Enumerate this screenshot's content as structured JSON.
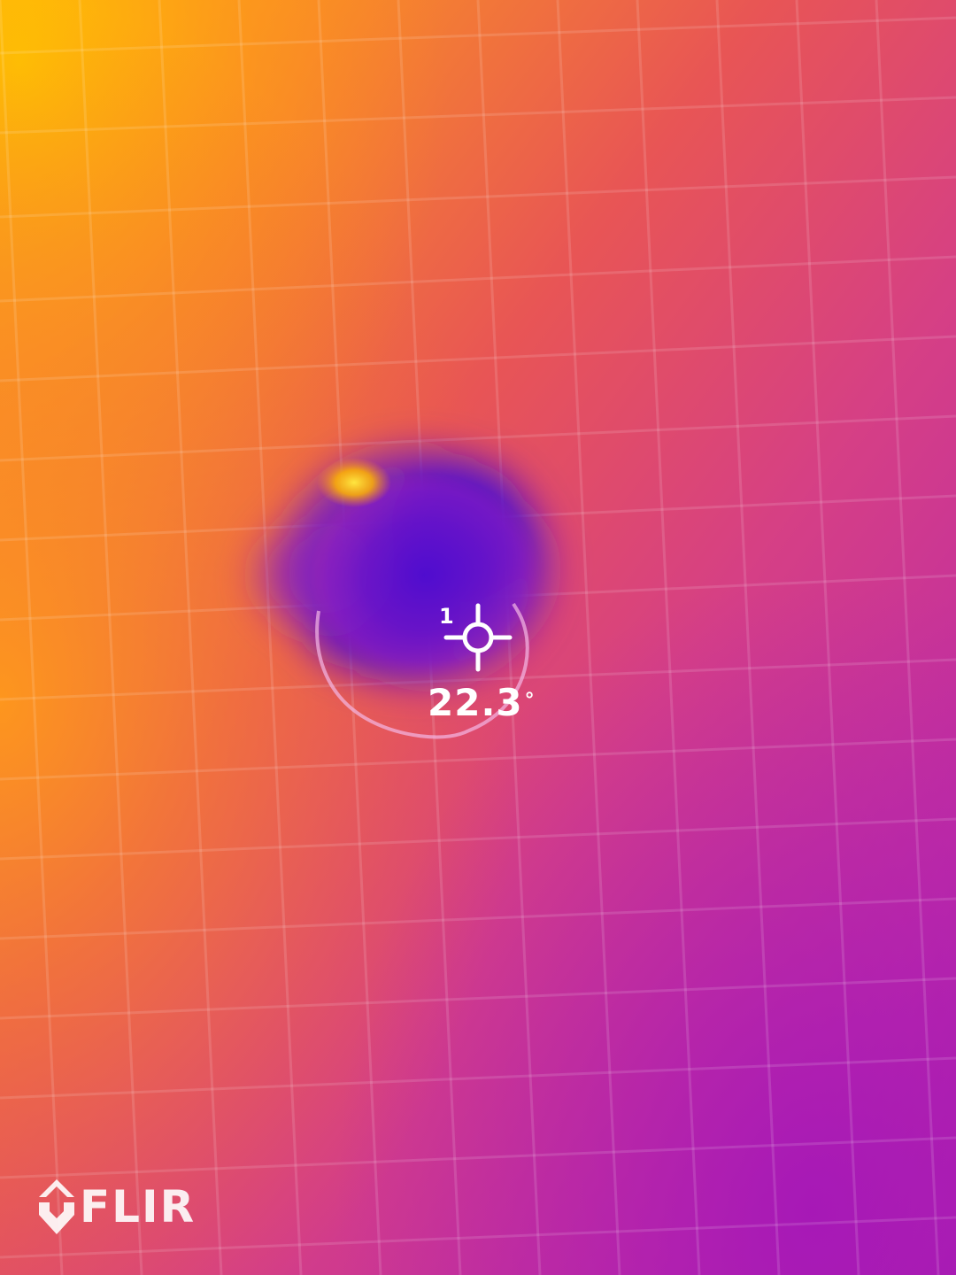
{
  "measurement": {
    "spot_index": "1",
    "temperature_value": "22.3",
    "temperature_unit": "°"
  },
  "brand": {
    "logo_text": "FLIR"
  },
  "colors": {
    "overlay_text": "#ffffff",
    "palette_hot": "#ffb300",
    "palette_warm": "#f06a30",
    "palette_mid": "#d8407a",
    "palette_cool": "#b022b0",
    "palette_cold": "#5a10c8"
  },
  "icons": {
    "spot_marker": "crosshair-icon",
    "brand_mark": "flir-diamond-icon"
  }
}
